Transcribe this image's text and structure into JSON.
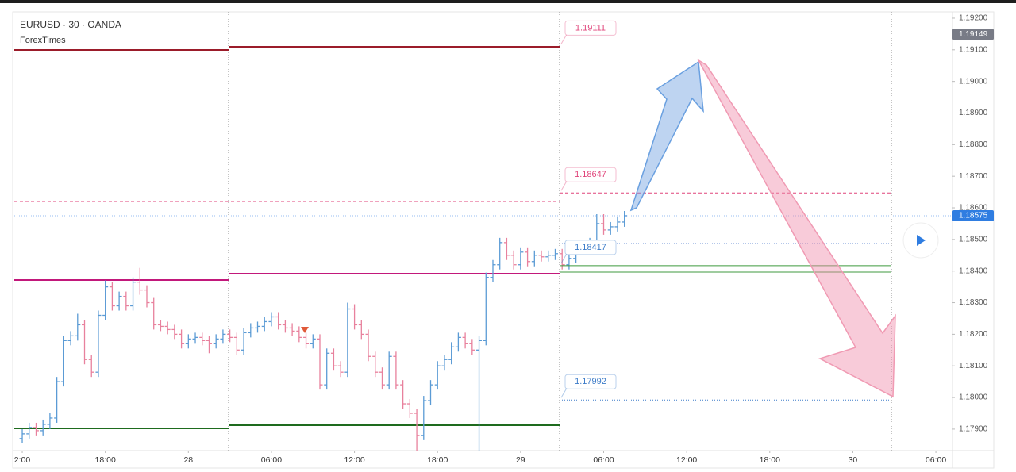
{
  "chart_data": {
    "type": "ohlc",
    "title": "EURUSD · 30 · OANDA",
    "subtitle": "ForexTimes",
    "up_color": "#5b9bd5",
    "down_color": "#e8819d",
    "grid": false,
    "xlim": [
      -1.15,
      134.4
    ],
    "xticks": [
      {
        "value": 0,
        "label": "2:00"
      },
      {
        "value": 12,
        "label": "18:00"
      },
      {
        "value": 24,
        "label": "28"
      },
      {
        "value": 36,
        "label": "06:00"
      },
      {
        "value": 48,
        "label": "12:00"
      },
      {
        "value": 60,
        "label": "18:00"
      },
      {
        "value": 72,
        "label": "29"
      },
      {
        "value": 84,
        "label": "06:00"
      },
      {
        "value": 96,
        "label": "12:00"
      },
      {
        "value": 108,
        "label": "18:00"
      },
      {
        "value": 120,
        "label": "30"
      },
      {
        "value": 132,
        "label": "06:00"
      }
    ],
    "ylim": [
      1.17832,
      1.1922
    ],
    "yticks": [
      {
        "value": 1.179,
        "label": "1.17900"
      },
      {
        "value": 1.18,
        "label": "1.18000"
      },
      {
        "value": 1.181,
        "label": "1.18100"
      },
      {
        "value": 1.182,
        "label": "1.18200"
      },
      {
        "value": 1.183,
        "label": "1.18300"
      },
      {
        "value": 1.184,
        "label": "1.18400"
      },
      {
        "value": 1.185,
        "label": "1.18500"
      },
      {
        "value": 1.186,
        "label": "1.18600"
      },
      {
        "value": 1.187,
        "label": "1.18700"
      },
      {
        "value": 1.188,
        "label": "1.18800"
      },
      {
        "value": 1.189,
        "label": "1.18900"
      },
      {
        "value": 1.19,
        "label": "1.19000"
      },
      {
        "value": 1.191,
        "label": "1.19100"
      },
      {
        "value": 1.192,
        "label": "1.19200"
      }
    ],
    "price_tags": [
      {
        "value": 1.19149,
        "color": "#787b86"
      },
      {
        "value": 1.18575,
        "color": "#2f7de1"
      }
    ],
    "price_labels": [
      {
        "value": 1.19111,
        "color": "#e0457b",
        "line": "none"
      },
      {
        "value": 1.18647,
        "color": "#e0457b",
        "line": "dashed"
      },
      {
        "value": 1.18417,
        "color": "#3d7cc9",
        "line": "green"
      },
      {
        "value": 1.17992,
        "color": "#3d7cc9",
        "line": "dotted"
      }
    ],
    "x": [
      0,
      1,
      2,
      3,
      4,
      5,
      6,
      7,
      8,
      9,
      10,
      11,
      12,
      13,
      14,
      15,
      16,
      17,
      18,
      19,
      20,
      21,
      22,
      23,
      24,
      25,
      26,
      27,
      28,
      29,
      30,
      31,
      32,
      33,
      34,
      35,
      36,
      37,
      38,
      39,
      40,
      41,
      42,
      43,
      44,
      45,
      46,
      47,
      48,
      49,
      50,
      51,
      52,
      53,
      54,
      55,
      56,
      57,
      58,
      59,
      60,
      61,
      62,
      63,
      64,
      65,
      66,
      67,
      68,
      69,
      70,
      71,
      72,
      73,
      74,
      75,
      76,
      77,
      78,
      79,
      80,
      81,
      82,
      83,
      84,
      85,
      86,
      87
    ],
    "open": [
      1.1787,
      1.17885,
      1.17905,
      1.17895,
      1.17915,
      1.17935,
      1.1805,
      1.1818,
      1.18195,
      1.1823,
      1.1812,
      1.1808,
      1.1826,
      1.1835,
      1.1829,
      1.1832,
      1.1829,
      1.18365,
      1.1834,
      1.183,
      1.1823,
      1.18225,
      1.18215,
      1.182,
      1.1817,
      1.18185,
      1.1819,
      1.1818,
      1.1817,
      1.18185,
      1.182,
      1.1819,
      1.1815,
      1.18205,
      1.1822,
      1.18225,
      1.1824,
      1.18255,
      1.1823,
      1.1822,
      1.1821,
      1.1819,
      1.1817,
      1.18185,
      1.1804,
      1.1814,
      1.181,
      1.1808,
      1.1828,
      1.1823,
      1.182,
      1.1813,
      1.1808,
      1.1804,
      1.1813,
      1.1804,
      1.1798,
      1.1795,
      1.1788,
      1.1799,
      1.1804,
      1.181,
      1.1812,
      1.1816,
      1.1819,
      1.1817,
      1.1815,
      1.1818,
      1.1838,
      1.1842,
      1.1849,
      1.1845,
      1.1842,
      1.1846,
      1.1843,
      1.1845,
      1.18445,
      1.1845,
      1.18455,
      1.1842,
      1.1844,
      1.1847,
      1.1848,
      1.1849,
      1.1855,
      1.1853,
      1.1854,
      1.18555
    ],
    "high": [
      1.179,
      1.1792,
      1.1792,
      1.1793,
      1.1795,
      1.18065,
      1.18195,
      1.1821,
      1.18265,
      1.18245,
      1.18135,
      1.18275,
      1.1837,
      1.18365,
      1.18335,
      1.18335,
      1.1838,
      1.1841,
      1.18355,
      1.18315,
      1.18245,
      1.1824,
      1.1823,
      1.18215,
      1.182,
      1.18205,
      1.18205,
      1.18195,
      1.182,
      1.18215,
      1.18215,
      1.18205,
      1.1822,
      1.18235,
      1.1824,
      1.18255,
      1.1827,
      1.1827,
      1.18245,
      1.18235,
      1.18225,
      1.18205,
      1.182,
      1.182,
      1.18155,
      1.18155,
      1.18115,
      1.183,
      1.18295,
      1.18245,
      1.18215,
      1.18145,
      1.18095,
      1.18145,
      1.18145,
      1.18055,
      1.17995,
      1.17965,
      1.18005,
      1.18055,
      1.18115,
      1.18135,
      1.18175,
      1.18205,
      1.18205,
      1.18185,
      1.18195,
      1.18395,
      1.18435,
      1.18505,
      1.18505,
      1.18465,
      1.18475,
      1.18475,
      1.18465,
      1.18465,
      1.18465,
      1.1847,
      1.1847,
      1.18455,
      1.18485,
      1.18495,
      1.18505,
      1.1858,
      1.1858,
      1.18555,
      1.1857,
      1.1859
    ],
    "low": [
      1.17855,
      1.1787,
      1.1788,
      1.1788,
      1.179,
      1.1792,
      1.18035,
      1.18165,
      1.1818,
      1.18105,
      1.18065,
      1.18065,
      1.18245,
      1.18275,
      1.18275,
      1.18275,
      1.18275,
      1.18325,
      1.18285,
      1.18215,
      1.1821,
      1.182,
      1.18185,
      1.18155,
      1.18155,
      1.1817,
      1.18165,
      1.1814,
      1.18155,
      1.1817,
      1.18175,
      1.18135,
      1.18135,
      1.1819,
      1.18205,
      1.1821,
      1.18225,
      1.18215,
      1.18205,
      1.18195,
      1.18175,
      1.18155,
      1.18155,
      1.18025,
      1.18025,
      1.18085,
      1.18065,
      1.18065,
      1.18215,
      1.18185,
      1.18115,
      1.18065,
      1.18025,
      1.18025,
      1.18025,
      1.17965,
      1.17935,
      1.1783,
      1.17865,
      1.17975,
      1.18025,
      1.18085,
      1.18105,
      1.18145,
      1.18155,
      1.18135,
      1.17832,
      1.18165,
      1.18365,
      1.18405,
      1.18435,
      1.18405,
      1.18405,
      1.18415,
      1.18415,
      1.1843,
      1.1843,
      1.18435,
      1.18405,
      1.18405,
      1.18425,
      1.18455,
      1.18465,
      1.18475,
      1.18515,
      1.18515,
      1.18525,
      1.1854
    ],
    "close": [
      1.17885,
      1.17905,
      1.17895,
      1.17915,
      1.17935,
      1.1805,
      1.1818,
      1.18195,
      1.1823,
      1.1812,
      1.1808,
      1.1826,
      1.1835,
      1.1829,
      1.1832,
      1.1829,
      1.18365,
      1.1834,
      1.183,
      1.1823,
      1.18225,
      1.18215,
      1.182,
      1.1817,
      1.18185,
      1.1819,
      1.1818,
      1.1817,
      1.18185,
      1.182,
      1.1819,
      1.1815,
      1.18205,
      1.1822,
      1.18225,
      1.1824,
      1.18255,
      1.1823,
      1.1822,
      1.1821,
      1.1819,
      1.1817,
      1.18185,
      1.1804,
      1.1814,
      1.181,
      1.1808,
      1.1828,
      1.1823,
      1.182,
      1.1813,
      1.1808,
      1.1804,
      1.1813,
      1.1804,
      1.1798,
      1.1795,
      1.1788,
      1.1799,
      1.1804,
      1.181,
      1.1812,
      1.1816,
      1.1819,
      1.1817,
      1.1815,
      1.1818,
      1.1838,
      1.1842,
      1.1849,
      1.1845,
      1.1842,
      1.1846,
      1.1843,
      1.1845,
      1.18445,
      1.1845,
      1.18455,
      1.1842,
      1.1844,
      1.1847,
      1.1848,
      1.1849,
      1.1855,
      1.1853,
      1.1854,
      1.18555,
      1.18575
    ]
  }
}
